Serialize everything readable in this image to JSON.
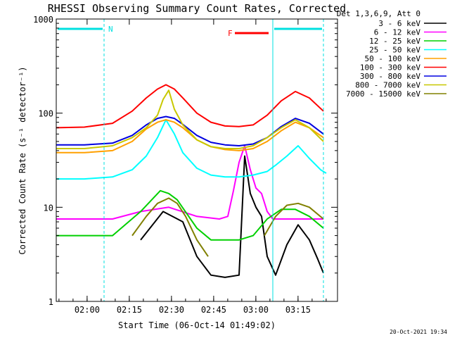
{
  "chart_data": {
    "type": "line",
    "title": "RHESSI Observing Summary Count Rates, Corrected",
    "xlabel": "Start Time (06-Oct-14 01:49:02)",
    "ylabel": "Corrected Count Rate (s⁻¹ detector⁻¹)",
    "y_scale": "log",
    "ylim": [
      1,
      1000
    ],
    "xlim_minutes": [
      0,
      100
    ],
    "x_ticks": [
      {
        "minute": 10.97,
        "label": "02:00"
      },
      {
        "minute": 25.97,
        "label": "02:15"
      },
      {
        "minute": 40.97,
        "label": "02:30"
      },
      {
        "minute": 55.97,
        "label": "02:45"
      },
      {
        "minute": 70.97,
        "label": "03:00"
      },
      {
        "minute": 85.97,
        "label": "03:15"
      }
    ],
    "y_ticks": [
      {
        "value": 1,
        "label": "1"
      },
      {
        "value": 10,
        "label": "10"
      },
      {
        "value": 100,
        "label": "100"
      },
      {
        "value": 1000,
        "label": "1000"
      }
    ],
    "legend_header": "Det 1,3,6,9, Att 0",
    "legend_position": "right",
    "series": [
      {
        "name": "3 - 6 keV",
        "color": "#000000",
        "minute": [
          0,
          20,
          30,
          38,
          45,
          50,
          55,
          60,
          65,
          67,
          69,
          71,
          73,
          75,
          78,
          82,
          86,
          90,
          93,
          95
        ],
        "value": [
          null,
          null,
          4.5,
          9.0,
          7.0,
          3.0,
          1.9,
          1.8,
          1.9,
          35.0,
          14.0,
          10.0,
          8.0,
          3.0,
          1.9,
          4.0,
          6.5,
          4.5,
          2.8,
          2.0
        ]
      },
      {
        "name": "6 - 12 keV",
        "color": "#ff00ff",
        "minute": [
          0,
          10,
          20,
          30,
          40,
          50,
          58,
          61,
          63,
          65,
          67,
          69,
          71,
          73,
          75,
          77,
          80,
          85,
          90,
          95
        ],
        "value": [
          7.5,
          7.5,
          7.5,
          9.0,
          10.0,
          8.0,
          7.5,
          8.0,
          15.0,
          30.0,
          45.0,
          25.0,
          16.0,
          14.0,
          9.0,
          7.5,
          7.5,
          7.5,
          7.5,
          7.5
        ]
      },
      {
        "name": "12 - 25 keV",
        "color": "#00d000",
        "minute": [
          0,
          10,
          20,
          30,
          37,
          40,
          43,
          50,
          55,
          60,
          65,
          70,
          75,
          80,
          85,
          90,
          95
        ],
        "value": [
          5.0,
          5.0,
          5.0,
          9.0,
          15.0,
          14.0,
          12.0,
          6.0,
          4.5,
          4.5,
          4.5,
          5.0,
          7.5,
          9.5,
          9.5,
          8.0,
          6.0
        ]
      },
      {
        "name": "25 - 50 keV",
        "color": "#00ffff",
        "minute": [
          0,
          10,
          20,
          27,
          32,
          36,
          39,
          42,
          45,
          50,
          55,
          60,
          65,
          70,
          75,
          78,
          82,
          86,
          90,
          94,
          96
        ],
        "value": [
          20.0,
          20.0,
          21.0,
          25.0,
          35.0,
          55.0,
          85.0,
          60.0,
          38.0,
          26.0,
          22.0,
          21.0,
          21.0,
          22.0,
          24.0,
          28.0,
          35.0,
          45.0,
          33.0,
          25.0,
          23.0
        ]
      },
      {
        "name": "50 - 100 keV",
        "color": "#ffa000",
        "minute": [
          0,
          10,
          20,
          27,
          32,
          36,
          39,
          42,
          45,
          50,
          55,
          60,
          65,
          70,
          75,
          80,
          85,
          90,
          95
        ],
        "value": [
          38.0,
          38.0,
          40.0,
          50.0,
          68.0,
          80.0,
          85.0,
          80.0,
          70.0,
          52.0,
          44.0,
          41.0,
          40.0,
          42.0,
          50.0,
          65.0,
          80.0,
          70.0,
          55.0
        ]
      },
      {
        "name": "100 - 300 keV",
        "color": "#ff0000",
        "minute": [
          0,
          10,
          20,
          27,
          32,
          36,
          39,
          42,
          45,
          50,
          55,
          60,
          65,
          70,
          75,
          80,
          85,
          90,
          95
        ],
        "value": [
          70.0,
          71.0,
          78.0,
          105.0,
          145.0,
          180.0,
          200.0,
          180.0,
          145.0,
          100.0,
          80.0,
          73.0,
          72.0,
          75.0,
          95.0,
          135.0,
          170.0,
          145.0,
          105.0
        ]
      },
      {
        "name": "300 - 800 keV",
        "color": "#0000e0",
        "minute": [
          0,
          10,
          20,
          27,
          32,
          36,
          39,
          42,
          45,
          50,
          55,
          60,
          65,
          70,
          75,
          80,
          85,
          90,
          95
        ],
        "value": [
          46.0,
          46.0,
          48.0,
          58.0,
          75.0,
          88.0,
          92.0,
          88.0,
          76.0,
          58.0,
          49.0,
          46.0,
          45.0,
          47.0,
          55.0,
          72.0,
          88.0,
          78.0,
          60.0
        ]
      },
      {
        "name": "800 - 7000 keV",
        "color": "#c8c800",
        "minute": [
          0,
          10,
          20,
          27,
          32,
          36,
          38,
          40,
          42,
          45,
          50,
          55,
          60,
          65,
          70,
          75,
          80,
          85,
          90,
          95
        ],
        "value": [
          42.0,
          42.0,
          45.0,
          55.0,
          70.0,
          95.0,
          140.0,
          175.0,
          110.0,
          75.0,
          52.0,
          44.0,
          42.0,
          42.0,
          45.0,
          55.0,
          70.0,
          85.0,
          70.0,
          50.0
        ]
      },
      {
        "name": "7000 - 15000 keV",
        "color": "#808000",
        "minute": [
          0,
          10,
          20,
          27,
          32,
          36,
          40,
          43,
          46,
          50,
          54,
          58,
          62,
          66,
          70,
          74,
          78,
          82,
          86,
          90,
          95
        ],
        "value": [
          null,
          null,
          null,
          5.0,
          8.0,
          11.0,
          12.5,
          11.0,
          8.0,
          4.5,
          3.0,
          null,
          null,
          null,
          null,
          5.0,
          8.0,
          10.5,
          11.0,
          10.0,
          7.5
        ]
      }
    ],
    "annotations": [
      {
        "label": "N",
        "color": "#00e0e0",
        "minute_start": 0,
        "minute_end": 17
      },
      {
        "label": "F",
        "color": "#ff0000",
        "minute_start": 63,
        "minute_end": 76
      },
      {
        "label": "",
        "color": "#00e0e0",
        "minute_start": 77,
        "minute_end": 95
      }
    ],
    "vertical_lines": [
      {
        "minute": 0,
        "style": "solid"
      },
      {
        "minute": 17,
        "style": "dashed"
      },
      {
        "minute": 77,
        "style": "solid"
      },
      {
        "minute": 95,
        "style": "dashed"
      }
    ]
  },
  "footer": {
    "timestamp": "20-Oct-2021 19:34"
  }
}
